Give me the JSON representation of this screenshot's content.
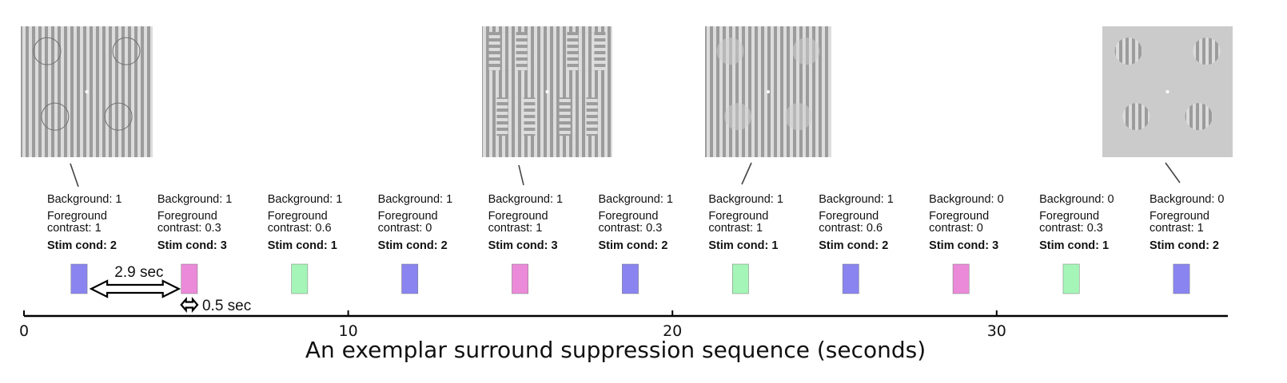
{
  "chart_data": {
    "type": "timeline",
    "title": "",
    "xlabel": "An exemplar surround suppression sequence (seconds)",
    "xlim": [
      0,
      37.5
    ],
    "xticks": [
      0,
      10,
      20,
      30
    ],
    "tick_labels": [
      "0",
      "10",
      "20",
      "30"
    ],
    "stimulus_duration_sec": 0.5,
    "interval_sec": 2.9,
    "interval_label": "2.9 sec",
    "duration_label": "0.5 sec",
    "label_prefixes": {
      "background": "Background:",
      "foreground": "Foreground",
      "contrast": "contrast:",
      "stim": "Stim cond:"
    },
    "trials": [
      {
        "onset": 1.7,
        "background": "1",
        "contrast": "1",
        "cond": "2",
        "color": "#8a84f0",
        "thumbnail": "bg-circles"
      },
      {
        "onset": 5.1,
        "background": "1",
        "contrast": "0.3",
        "cond": "3",
        "color": "#ea8ad8",
        "thumbnail": null
      },
      {
        "onset": 8.5,
        "background": "1",
        "contrast": "0.6",
        "cond": "1",
        "color": "#a6f5b8",
        "thumbnail": null
      },
      {
        "onset": 11.9,
        "background": "1",
        "contrast": "0",
        "cond": "2",
        "color": "#8a84f0",
        "thumbnail": null
      },
      {
        "onset": 15.3,
        "background": "1",
        "contrast": "1",
        "cond": "3",
        "color": "#ea8ad8",
        "thumbnail": "orthogonal-patches"
      },
      {
        "onset": 18.7,
        "background": "1",
        "contrast": "0.3",
        "cond": "2",
        "color": "#8a84f0",
        "thumbnail": null
      },
      {
        "onset": 22.1,
        "background": "1",
        "contrast": "1",
        "cond": "1",
        "color": "#a6f5b8",
        "thumbnail": "parallel-patches"
      },
      {
        "onset": 25.5,
        "background": "1",
        "contrast": "0.6",
        "cond": "2",
        "color": "#8a84f0",
        "thumbnail": null
      },
      {
        "onset": 28.9,
        "background": "0",
        "contrast": "0",
        "cond": "3",
        "color": "#ea8ad8",
        "thumbnail": null
      },
      {
        "onset": 32.3,
        "background": "0",
        "contrast": "0.3",
        "cond": "1",
        "color": "#a6f5b8",
        "thumbnail": null
      },
      {
        "onset": 35.7,
        "background": "0",
        "contrast": "1",
        "cond": "2",
        "color": "#8a84f0",
        "thumbnail": "patches-only"
      }
    ]
  }
}
